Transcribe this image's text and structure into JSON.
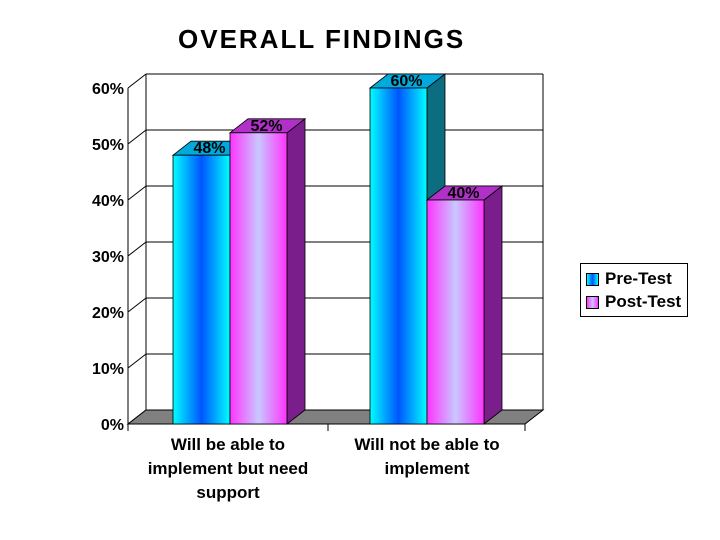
{
  "title": "OVERALL FINDINGS",
  "colors": {
    "pretest_face": "#00ffff",
    "pretest_core": "#0055ff",
    "pretest_side": "#0c6c80",
    "pretest_top": "#00aadd",
    "posttest_face": "#ff33ff",
    "posttest_core": "#c8c8ff",
    "posttest_side": "#7a1e8c",
    "posttest_top": "#b030c8",
    "floor": "#808080"
  },
  "chart_data": {
    "type": "bar",
    "title": "OVERALL FINDINGS",
    "categories": [
      [
        "Will be able to",
        "implement but need",
        "support"
      ],
      [
        "Will not be able to",
        "implement"
      ]
    ],
    "series": [
      {
        "name": "Pre-Test",
        "values": [
          48,
          60
        ],
        "labels": [
          "48%",
          "60%"
        ]
      },
      {
        "name": "Post-Test",
        "values": [
          52,
          40
        ],
        "labels": [
          "52%",
          "40%"
        ]
      }
    ],
    "y_ticks": [
      "0%",
      "10%",
      "20%",
      "30%",
      "40%",
      "50%",
      "60%"
    ],
    "ylim": [
      0,
      60
    ],
    "grid": true,
    "legend_position": "right"
  }
}
